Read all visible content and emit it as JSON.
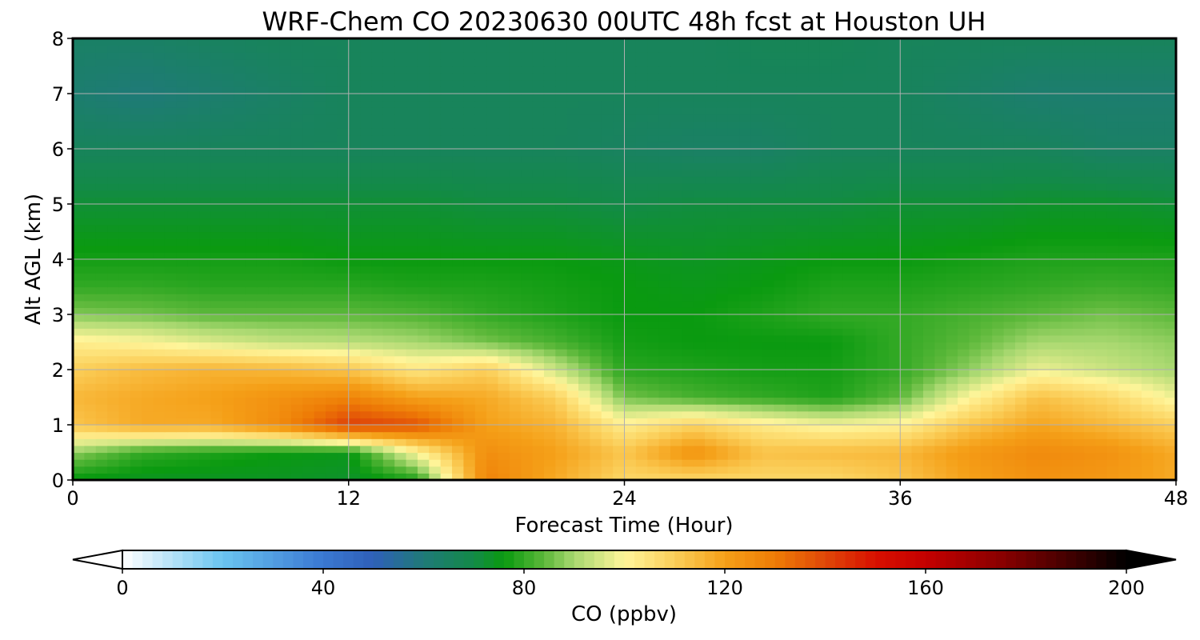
{
  "chart_data": {
    "type": "heatmap",
    "title": "WRF-Chem CO  20230630 00UTC 48h fcst at Houston UH",
    "xlabel": "Forecast Time (Hour)",
    "ylabel": "Alt AGL (km)",
    "xlim": [
      0,
      48
    ],
    "ylim": [
      0,
      8
    ],
    "x_ticks": [
      "0",
      "12",
      "24",
      "36",
      "48"
    ],
    "y_ticks": [
      "0",
      "1",
      "2",
      "3",
      "4",
      "5",
      "6",
      "7",
      "8"
    ],
    "grid": true,
    "x": [
      0,
      3,
      6,
      9,
      12,
      15,
      18,
      21,
      24,
      27,
      30,
      33,
      36,
      39,
      42,
      45,
      48
    ],
    "y": [
      0,
      0.5,
      1,
      1.5,
      2,
      2.5,
      3,
      3.5,
      4,
      5,
      6,
      7,
      8
    ],
    "z": [
      [
        75,
        74,
        74,
        74,
        73,
        78,
        128,
        118,
        108,
        108,
        108,
        108,
        112,
        120,
        124,
        122,
        118
      ],
      [
        88,
        80,
        78,
        76,
        75,
        100,
        125,
        120,
        112,
        124,
        113,
        114,
        115,
        122,
        126,
        124,
        118
      ],
      [
        112,
        118,
        118,
        126,
        142,
        138,
        120,
        116,
        102,
        109,
        103,
        99,
        101,
        112,
        119,
        115,
        110
      ],
      [
        115,
        118,
        120,
        124,
        128,
        120,
        118,
        110,
        86,
        82,
        80,
        78,
        84,
        100,
        113,
        108,
        98
      ],
      [
        110,
        114,
        116,
        115,
        112,
        104,
        110,
        94,
        79,
        78,
        77,
        77,
        80,
        88,
        98,
        94,
        90
      ],
      [
        102,
        100,
        96,
        93,
        92,
        90,
        86,
        82,
        77,
        76,
        76,
        76,
        80,
        84,
        90,
        90,
        88
      ],
      [
        87,
        86,
        84,
        84,
        84,
        83,
        80,
        78,
        76,
        76,
        78,
        80,
        80,
        82,
        84,
        86,
        84
      ],
      [
        80,
        80,
        79,
        79,
        79,
        78,
        78,
        77,
        76,
        75,
        76,
        78,
        78,
        79,
        80,
        81,
        80
      ],
      [
        77,
        77,
        77,
        77,
        76,
        76,
        76,
        76,
        75,
        74,
        75,
        76,
        76,
        77,
        78,
        78,
        78
      ],
      [
        72,
        72,
        72,
        72,
        72,
        72,
        71,
        71,
        70,
        71,
        71,
        71,
        72,
        72,
        73,
        73,
        72
      ],
      [
        66,
        66,
        66,
        66,
        66,
        66,
        66,
        66,
        65,
        64,
        64,
        66,
        66,
        66,
        66,
        64,
        64
      ],
      [
        62,
        60,
        62,
        64,
        66,
        66,
        66,
        66,
        66,
        66,
        66,
        66,
        66,
        64,
        62,
        62,
        62
      ],
      [
        64,
        64,
        65,
        66,
        66,
        66,
        66,
        66,
        66,
        66,
        67,
        67,
        66,
        66,
        66,
        66,
        66
      ]
    ],
    "colorbar": {
      "label": "CO  (ppbv)",
      "ticks": [
        "0",
        "40",
        "80",
        "120",
        "160",
        "200"
      ],
      "range": [
        0,
        200
      ],
      "extend": "both",
      "stops": [
        {
          "v": 0,
          "c": "#ffffff"
        },
        {
          "v": 20,
          "c": "#6ac4f0"
        },
        {
          "v": 40,
          "c": "#3a78d2"
        },
        {
          "v": 50,
          "c": "#2f60b8"
        },
        {
          "v": 60,
          "c": "#1f7a78"
        },
        {
          "v": 70,
          "c": "#138a48"
        },
        {
          "v": 76,
          "c": "#0a9a10"
        },
        {
          "v": 84,
          "c": "#5cb83a"
        },
        {
          "v": 90,
          "c": "#a8d870"
        },
        {
          "v": 100,
          "c": "#fff59a"
        },
        {
          "v": 110,
          "c": "#fbcf5a"
        },
        {
          "v": 120,
          "c": "#f5a018"
        },
        {
          "v": 130,
          "c": "#ee7c06"
        },
        {
          "v": 140,
          "c": "#e04808"
        },
        {
          "v": 150,
          "c": "#d81000"
        },
        {
          "v": 160,
          "c": "#c40000"
        },
        {
          "v": 175,
          "c": "#8a0000"
        },
        {
          "v": 190,
          "c": "#3a0000"
        },
        {
          "v": 200,
          "c": "#000000"
        }
      ]
    }
  }
}
